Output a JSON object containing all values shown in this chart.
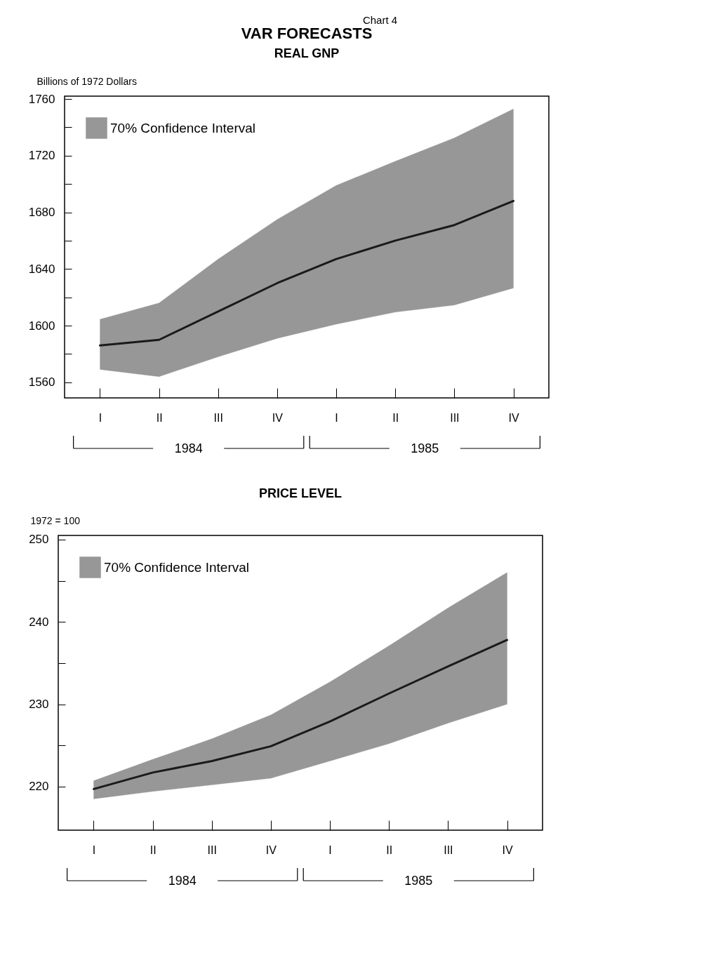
{
  "chart_data": [
    {
      "type": "line",
      "title": "VAR FORECASTS",
      "subtitle": "REAL GNP",
      "ylabel": "Billions of 1972 Dollars",
      "annotations": [
        "Chart 4",
        "1984",
        "1985"
      ],
      "categories": [
        "I",
        "II",
        "III",
        "IV",
        "I",
        "II",
        "III",
        "IV"
      ],
      "series": [
        {
          "name": "70% Confidence Interval",
          "color": "#1a1a1a",
          "values": [
            1586,
            1590,
            1610,
            1630,
            1647,
            1660,
            1671,
            1688
          ],
          "lower": [
            1569,
            1564,
            1578,
            1591,
            1601,
            1609.5,
            1614.5,
            1626.5
          ],
          "upper": [
            1604.5,
            1616,
            1647,
            1675,
            1699,
            1716,
            1732.5,
            1753
          ]
        }
      ],
      "ylim": [
        1549,
        1762
      ],
      "yticks": [
        1560,
        {
          "value": 1580,
          "label": null
        },
        1600,
        {
          "value": 1620,
          "label": null
        },
        1640,
        {
          "value": 1660,
          "label": null
        },
        1680,
        {
          "value": 1700,
          "label": null
        },
        1720,
        {
          "value": 1740,
          "label": null
        },
        1760
      ],
      "legend": "top left"
    },
    {
      "type": "line",
      "subtitle": "PRICE LEVEL",
      "ylabel": "1972 = 100",
      "annotations": [
        "1984",
        "1985"
      ],
      "categories": [
        "I",
        "II",
        "III",
        "IV",
        "I",
        "II",
        "III",
        "IV"
      ],
      "series": [
        {
          "name": "70% Confidence Interval",
          "color": "#1a1a1a",
          "values": [
            219.7,
            221.7,
            223.1,
            224.9,
            227.9,
            231.3,
            234.6,
            237.8
          ],
          "lower": [
            218.5,
            219.4,
            220.2,
            221,
            223.1,
            225.2,
            227.7,
            230
          ],
          "upper": [
            220.7,
            223.3,
            225.8,
            228.7,
            232.7,
            237.1,
            241.7,
            246
          ]
        }
      ],
      "ylim": [
        214.7,
        250.5
      ],
      "yticks": [
        220,
        {
          "value": 225,
          "label": null
        },
        230,
        {
          "value": 235,
          "label": null
        },
        240,
        {
          "value": 245,
          "label": null
        },
        250
      ],
      "legend": "top left"
    }
  ]
}
